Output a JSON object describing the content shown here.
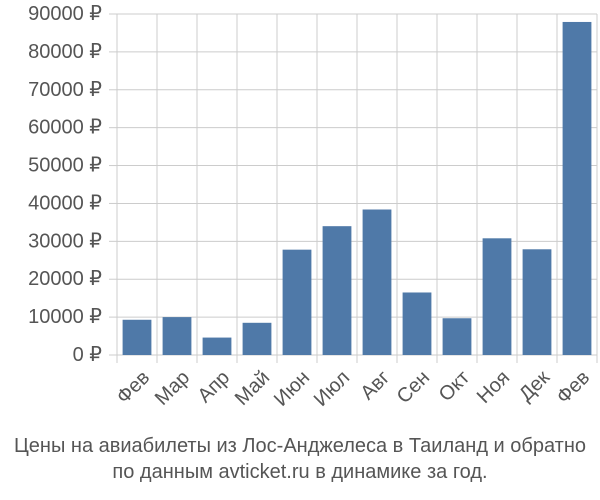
{
  "chart_data": {
    "type": "bar",
    "categories": [
      "Фев",
      "Мар",
      "Апр",
      "Май",
      "Июн",
      "Июл",
      "Авг",
      "Сен",
      "Окт",
      "Ноя",
      "Дек",
      "Фев"
    ],
    "values": [
      9300,
      10000,
      4600,
      8500,
      27800,
      34000,
      38400,
      16500,
      9700,
      30800,
      27900,
      87900
    ],
    "ylim": [
      0,
      90000
    ],
    "yticks": [
      0,
      10000,
      20000,
      30000,
      40000,
      50000,
      60000,
      70000,
      80000,
      90000
    ],
    "ytick_labels": [
      "0 ₽",
      "10000 ₽",
      "20000 ₽",
      "30000 ₽",
      "40000 ₽",
      "50000 ₽",
      "60000 ₽",
      "70000 ₽",
      "80000 ₽",
      "90000 ₽"
    ],
    "grid": "vertical and horizontal",
    "bar_color": "#4f79a8",
    "grid_color": "#cccccc",
    "caption": [
      "Цены на авиабилеты из Лос-Анджелеса в Таиланд и обратно",
      "по данным avticket.ru в динамике за год."
    ]
  }
}
